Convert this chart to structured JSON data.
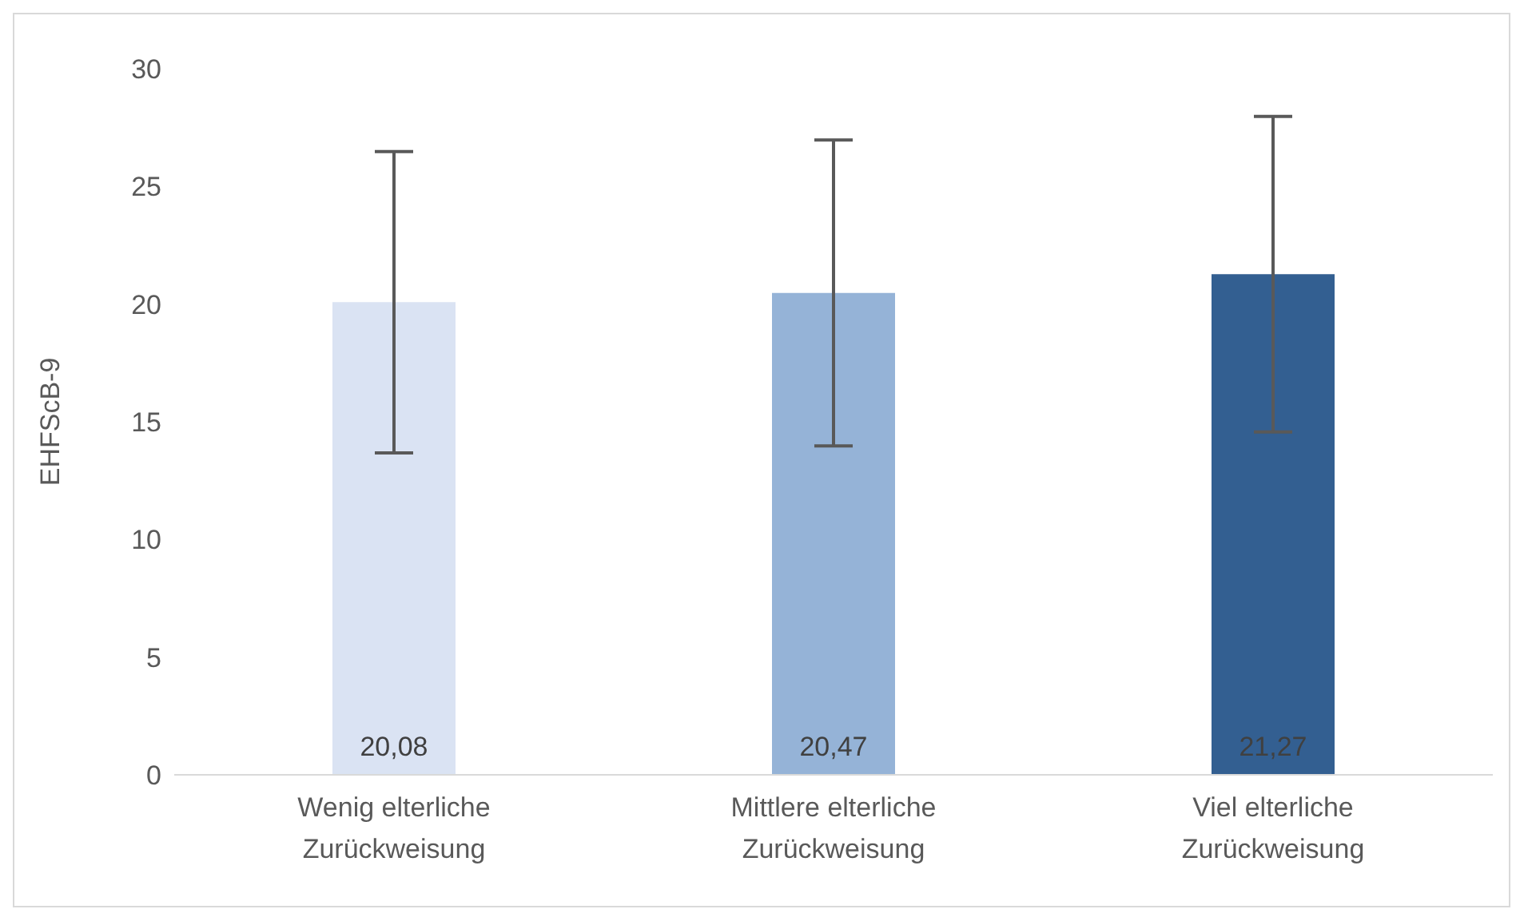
{
  "chart_data": {
    "type": "bar",
    "ylabel": "EHFScB-9",
    "categories": [
      "Wenig elterliche Zurückweisung",
      "Mittlere elterliche Zurückweisung",
      "Viel elterliche Zurückweisung"
    ],
    "values": [
      20.08,
      20.47,
      21.27
    ],
    "colors": [
      "#dae3f3",
      "#95b3d7",
      "#335f91"
    ],
    "errors": [
      6.4,
      6.5,
      6.7
    ],
    "value_labels": [
      "20,08",
      "20,47",
      "21,27"
    ],
    "ylim": [
      0,
      30
    ],
    "yticks": [
      0,
      5,
      10,
      15,
      20,
      25,
      30
    ],
    "grid": false
  }
}
